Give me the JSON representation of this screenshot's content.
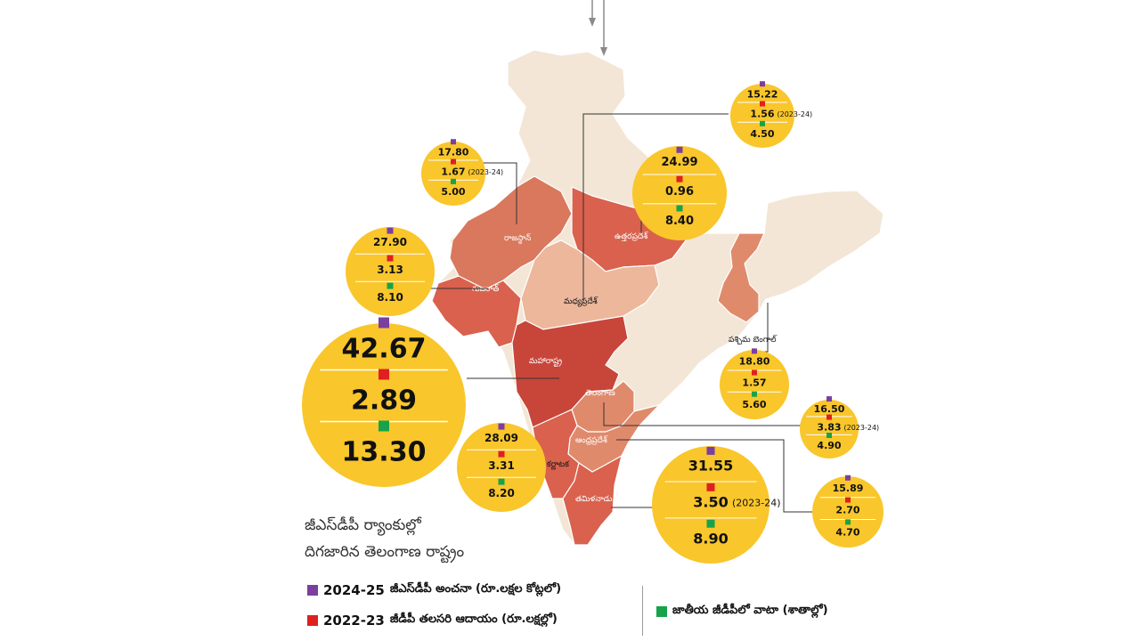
{
  "colors": {
    "purple": "#7b3fa0",
    "red": "#e02020",
    "green": "#17a34a",
    "bubble": "#f9c62b",
    "land": "#f3e6d6",
    "shade_dark": "#c8453a",
    "shade_mid": "#d9614d",
    "shade_light": "#e08a6c",
    "shade_pale": "#ecb79b"
  },
  "title": {
    "line1": "జీఎస్‌డీపీ ర్యాంకుల్లో",
    "line2": "దిగజారిన తెలంగాణ రాష్ట్రం"
  },
  "legend": {
    "gsdp_year": "2024-25",
    "gsdp_label": "జీఎస్‌డీపీ అంచనా (రూ.లక్షల కోట్లలో)",
    "percapita_year": "2022-23",
    "percapita_label": "జీడీపీ తలసరి ఆదాయం (రూ.లక్షల్లో)",
    "share_label": "జాతీయ జీడీపీలో వాటా (శాతాల్లో)"
  },
  "states": [
    {
      "name": "మహారాష్ట్ర",
      "gsdp": "42.67",
      "per_capita": "2.89",
      "per_capita_note": "",
      "share": "13.30"
    },
    {
      "name": "తమిళనాడు",
      "gsdp": "31.55",
      "per_capita": "3.50",
      "per_capita_note": "(2023-24)",
      "share": "8.90"
    },
    {
      "name": "కర్ణాటక",
      "gsdp": "28.09",
      "per_capita": "3.31",
      "per_capita_note": "",
      "share": "8.20"
    },
    {
      "name": "గుజరాత్",
      "gsdp": "27.90",
      "per_capita": "3.13",
      "per_capita_note": "",
      "share": "8.10"
    },
    {
      "name": "ఉత్తరప్రదేశ్",
      "gsdp": "24.99",
      "per_capita": "0.96",
      "per_capita_note": "",
      "share": "8.40"
    },
    {
      "name": "పశ్చిమ బెంగాల్",
      "gsdp": "18.80",
      "per_capita": "1.57",
      "per_capita_note": "",
      "share": "5.60"
    },
    {
      "name": "రాజస్థాన్",
      "gsdp": "17.80",
      "per_capita": "1.67",
      "per_capita_note": "(2023-24)",
      "share": "5.00"
    },
    {
      "name": "తెలంగాణ",
      "gsdp": "16.50",
      "per_capita": "3.83",
      "per_capita_note": "(2023-24)",
      "share": "4.90"
    },
    {
      "name": "ఆంధ్రప్రదేశ్",
      "gsdp": "15.89",
      "per_capita": "2.70",
      "per_capita_note": "",
      "share": "4.70"
    },
    {
      "name": "మధ్యప్రదేశ్",
      "gsdp": "15.22",
      "per_capita": "1.56",
      "per_capita_note": "(2023-24)",
      "share": "4.50"
    }
  ]
}
